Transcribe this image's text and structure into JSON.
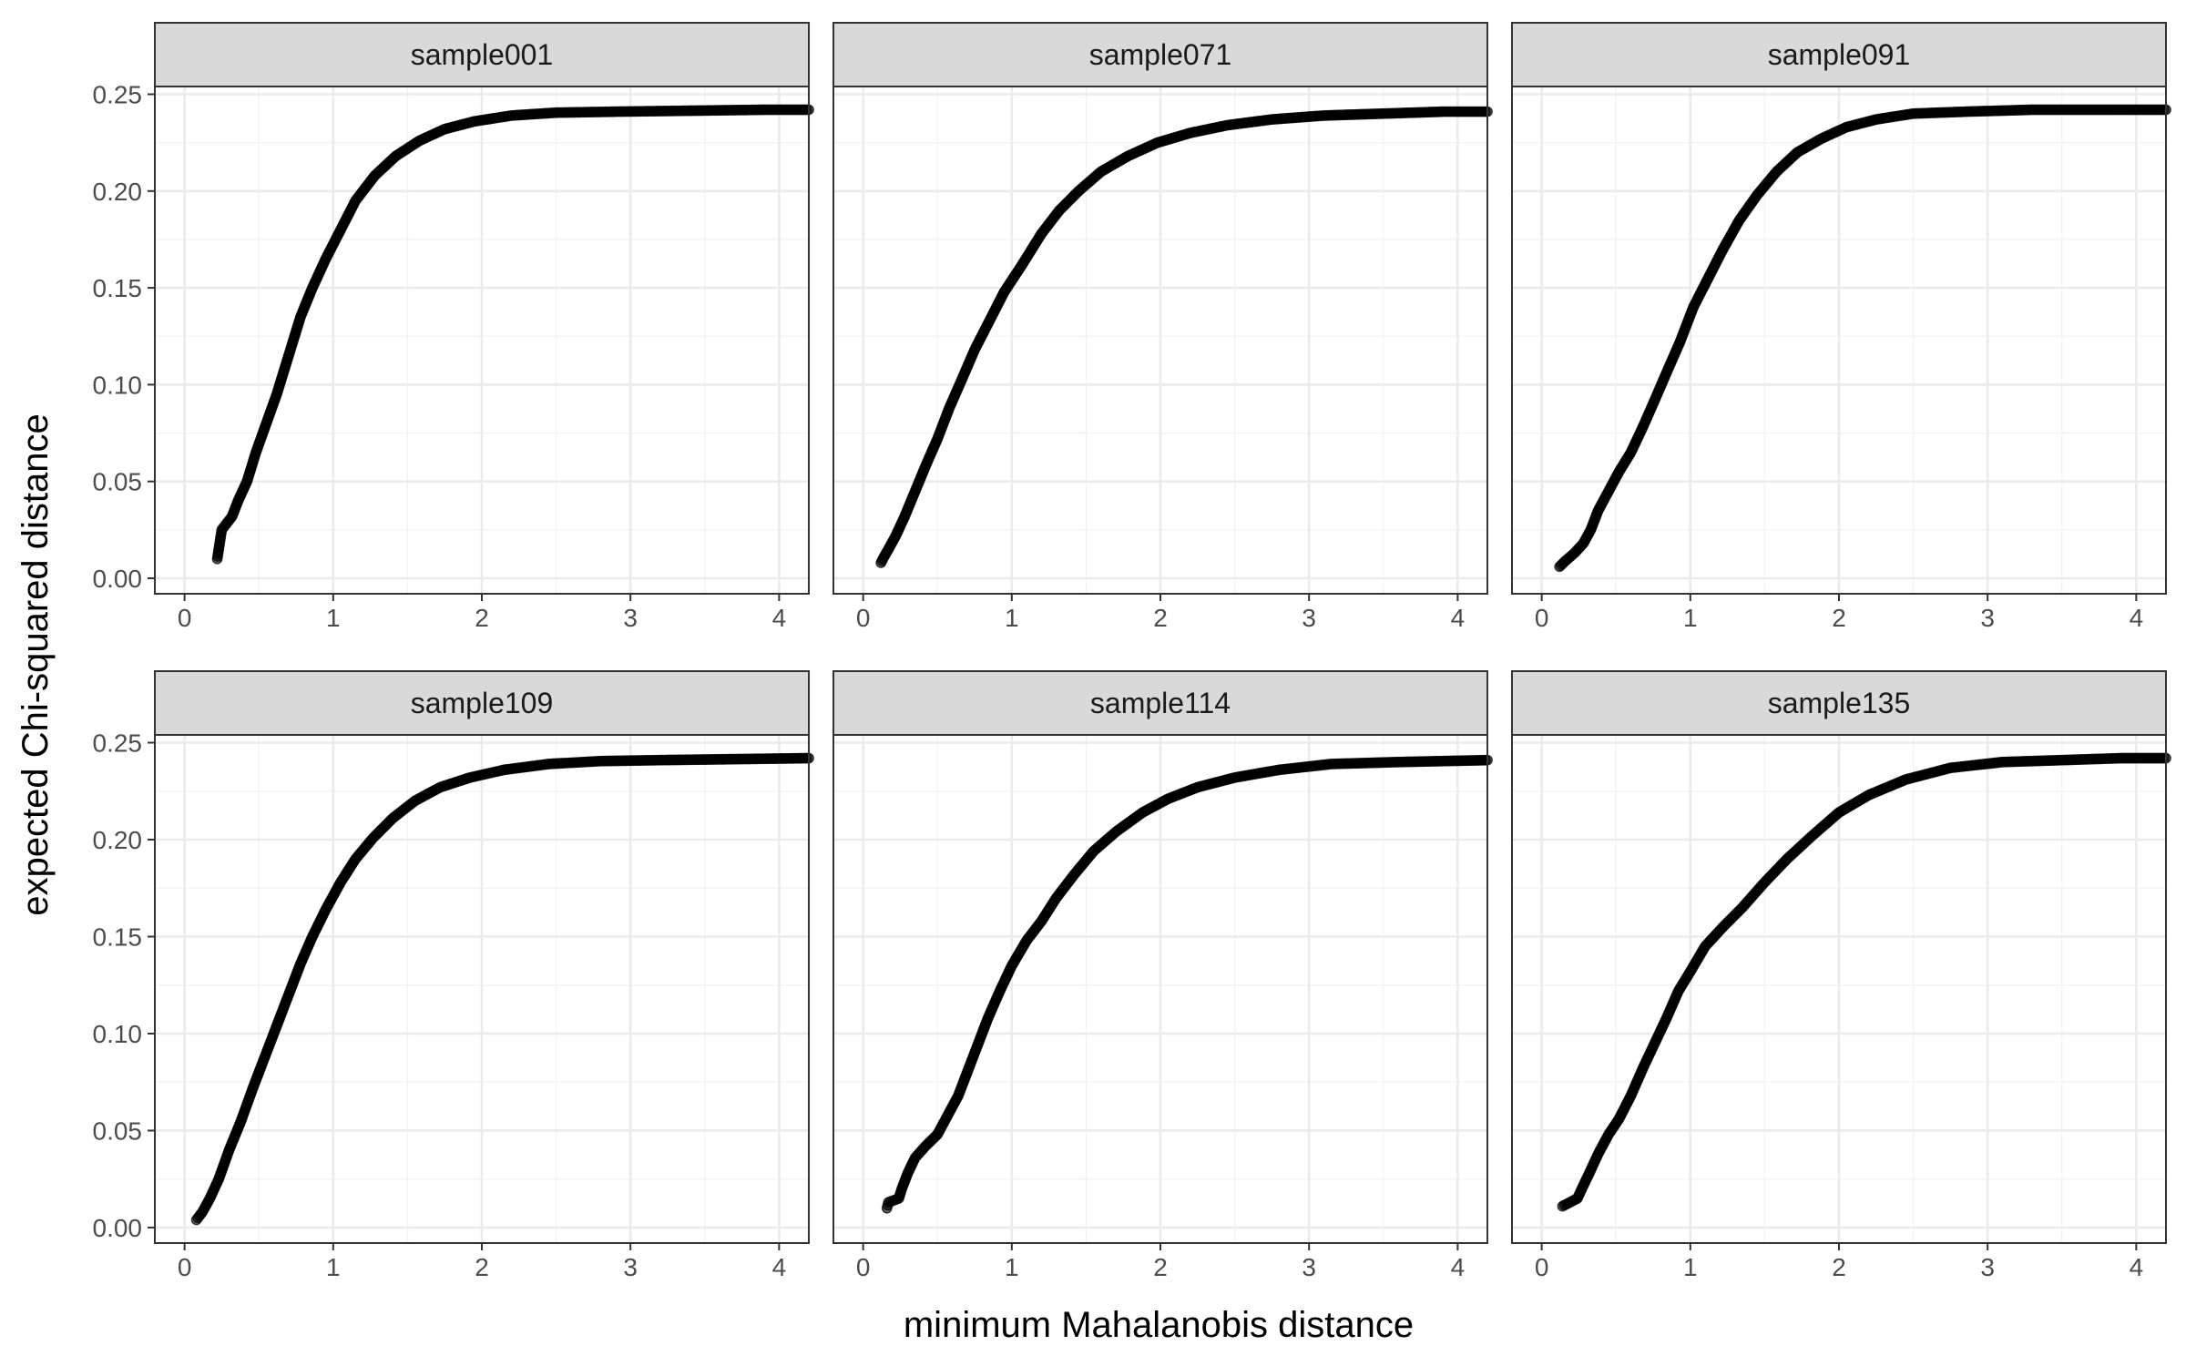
{
  "chart_data": {
    "type": "scatter",
    "facet_layout": "2x3",
    "xlabel": "minimum Mahalanobis distance",
    "ylabel": "expected Chi-squared distance",
    "xlim": [
      -0.2,
      4.2
    ],
    "ylim": [
      -0.008,
      0.254
    ],
    "x_ticks": [
      0,
      1,
      2,
      3,
      4
    ],
    "y_ticks": [
      0.0,
      0.05,
      0.1,
      0.15,
      0.2,
      0.25
    ],
    "x_tick_labels": [
      "0",
      "1",
      "2",
      "3",
      "4"
    ],
    "y_tick_labels": [
      "0.00",
      "0.05",
      "0.10",
      "0.15",
      "0.20",
      "0.25"
    ],
    "grid": true,
    "point_color": "#000000",
    "point_opacity": 0.6,
    "panels": [
      {
        "name": "sample001",
        "points": [
          [
            0.22,
            0.01
          ],
          [
            0.23,
            0.015
          ],
          [
            0.24,
            0.02
          ],
          [
            0.25,
            0.025
          ],
          [
            0.28,
            0.028
          ],
          [
            0.32,
            0.032
          ],
          [
            0.36,
            0.04
          ],
          [
            0.42,
            0.05
          ],
          [
            0.48,
            0.065
          ],
          [
            0.55,
            0.08
          ],
          [
            0.62,
            0.095
          ],
          [
            0.7,
            0.115
          ],
          [
            0.78,
            0.135
          ],
          [
            0.86,
            0.15
          ],
          [
            0.95,
            0.165
          ],
          [
            1.05,
            0.18
          ],
          [
            1.15,
            0.195
          ],
          [
            1.28,
            0.208
          ],
          [
            1.42,
            0.218
          ],
          [
            1.58,
            0.226
          ],
          [
            1.75,
            0.232
          ],
          [
            1.95,
            0.236
          ],
          [
            2.2,
            0.239
          ],
          [
            2.5,
            0.2405
          ],
          [
            2.9,
            0.241
          ],
          [
            3.4,
            0.2415
          ],
          [
            3.9,
            0.242
          ],
          [
            4.2,
            0.242
          ]
        ]
      },
      {
        "name": "sample071",
        "points": [
          [
            0.12,
            0.008
          ],
          [
            0.14,
            0.011
          ],
          [
            0.17,
            0.015
          ],
          [
            0.22,
            0.022
          ],
          [
            0.28,
            0.032
          ],
          [
            0.35,
            0.045
          ],
          [
            0.42,
            0.058
          ],
          [
            0.5,
            0.072
          ],
          [
            0.58,
            0.088
          ],
          [
            0.66,
            0.102
          ],
          [
            0.75,
            0.118
          ],
          [
            0.85,
            0.133
          ],
          [
            0.95,
            0.148
          ],
          [
            1.07,
            0.162
          ],
          [
            1.2,
            0.178
          ],
          [
            1.32,
            0.19
          ],
          [
            1.45,
            0.2
          ],
          [
            1.6,
            0.21
          ],
          [
            1.78,
            0.218
          ],
          [
            1.98,
            0.225
          ],
          [
            2.2,
            0.23
          ],
          [
            2.45,
            0.234
          ],
          [
            2.75,
            0.237
          ],
          [
            3.1,
            0.239
          ],
          [
            3.5,
            0.24
          ],
          [
            3.9,
            0.241
          ],
          [
            4.2,
            0.241
          ]
        ]
      },
      {
        "name": "sample091",
        "points": [
          [
            0.12,
            0.006
          ],
          [
            0.16,
            0.009
          ],
          [
            0.22,
            0.013
          ],
          [
            0.28,
            0.018
          ],
          [
            0.33,
            0.025
          ],
          [
            0.38,
            0.035
          ],
          [
            0.45,
            0.045
          ],
          [
            0.52,
            0.055
          ],
          [
            0.6,
            0.065
          ],
          [
            0.68,
            0.078
          ],
          [
            0.76,
            0.092
          ],
          [
            0.85,
            0.108
          ],
          [
            0.93,
            0.122
          ],
          [
            1.02,
            0.14
          ],
          [
            1.12,
            0.155
          ],
          [
            1.22,
            0.17
          ],
          [
            1.33,
            0.185
          ],
          [
            1.45,
            0.198
          ],
          [
            1.58,
            0.21
          ],
          [
            1.72,
            0.22
          ],
          [
            1.88,
            0.227
          ],
          [
            2.05,
            0.233
          ],
          [
            2.25,
            0.237
          ],
          [
            2.5,
            0.24
          ],
          [
            2.85,
            0.241
          ],
          [
            3.3,
            0.242
          ],
          [
            3.8,
            0.242
          ],
          [
            4.2,
            0.242
          ]
        ]
      },
      {
        "name": "sample109",
        "points": [
          [
            0.08,
            0.004
          ],
          [
            0.12,
            0.008
          ],
          [
            0.17,
            0.015
          ],
          [
            0.23,
            0.025
          ],
          [
            0.3,
            0.04
          ],
          [
            0.38,
            0.055
          ],
          [
            0.46,
            0.072
          ],
          [
            0.54,
            0.088
          ],
          [
            0.62,
            0.104
          ],
          [
            0.7,
            0.12
          ],
          [
            0.78,
            0.136
          ],
          [
            0.86,
            0.15
          ],
          [
            0.95,
            0.164
          ],
          [
            1.05,
            0.178
          ],
          [
            1.15,
            0.19
          ],
          [
            1.27,
            0.201
          ],
          [
            1.4,
            0.211
          ],
          [
            1.55,
            0.22
          ],
          [
            1.72,
            0.227
          ],
          [
            1.92,
            0.232
          ],
          [
            2.15,
            0.236
          ],
          [
            2.45,
            0.239
          ],
          [
            2.8,
            0.2405
          ],
          [
            3.2,
            0.241
          ],
          [
            3.7,
            0.2415
          ],
          [
            4.2,
            0.242
          ]
        ]
      },
      {
        "name": "sample114",
        "points": [
          [
            0.16,
            0.01
          ],
          [
            0.17,
            0.013
          ],
          [
            0.24,
            0.015
          ],
          [
            0.26,
            0.02
          ],
          [
            0.3,
            0.028
          ],
          [
            0.35,
            0.036
          ],
          [
            0.42,
            0.042
          ],
          [
            0.5,
            0.048
          ],
          [
            0.57,
            0.058
          ],
          [
            0.64,
            0.068
          ],
          [
            0.7,
            0.08
          ],
          [
            0.76,
            0.092
          ],
          [
            0.84,
            0.108
          ],
          [
            0.92,
            0.122
          ],
          [
            1.0,
            0.135
          ],
          [
            1.1,
            0.148
          ],
          [
            1.2,
            0.158
          ],
          [
            1.3,
            0.17
          ],
          [
            1.42,
            0.182
          ],
          [
            1.55,
            0.194
          ],
          [
            1.7,
            0.204
          ],
          [
            1.88,
            0.214
          ],
          [
            2.05,
            0.221
          ],
          [
            2.25,
            0.227
          ],
          [
            2.5,
            0.232
          ],
          [
            2.8,
            0.236
          ],
          [
            3.15,
            0.239
          ],
          [
            3.6,
            0.24
          ],
          [
            4.2,
            0.241
          ]
        ]
      },
      {
        "name": "sample135",
        "points": [
          [
            0.14,
            0.011
          ],
          [
            0.24,
            0.015
          ],
          [
            0.27,
            0.02
          ],
          [
            0.32,
            0.028
          ],
          [
            0.38,
            0.038
          ],
          [
            0.45,
            0.048
          ],
          [
            0.52,
            0.056
          ],
          [
            0.6,
            0.068
          ],
          [
            0.68,
            0.082
          ],
          [
            0.76,
            0.095
          ],
          [
            0.84,
            0.108
          ],
          [
            0.92,
            0.122
          ],
          [
            1.0,
            0.132
          ],
          [
            1.1,
            0.145
          ],
          [
            1.22,
            0.155
          ],
          [
            1.35,
            0.165
          ],
          [
            1.5,
            0.178
          ],
          [
            1.65,
            0.19
          ],
          [
            1.82,
            0.202
          ],
          [
            2.0,
            0.214
          ],
          [
            2.2,
            0.223
          ],
          [
            2.45,
            0.231
          ],
          [
            2.75,
            0.237
          ],
          [
            3.1,
            0.24
          ],
          [
            3.5,
            0.241
          ],
          [
            3.9,
            0.242
          ],
          [
            4.2,
            0.242
          ]
        ]
      }
    ]
  }
}
